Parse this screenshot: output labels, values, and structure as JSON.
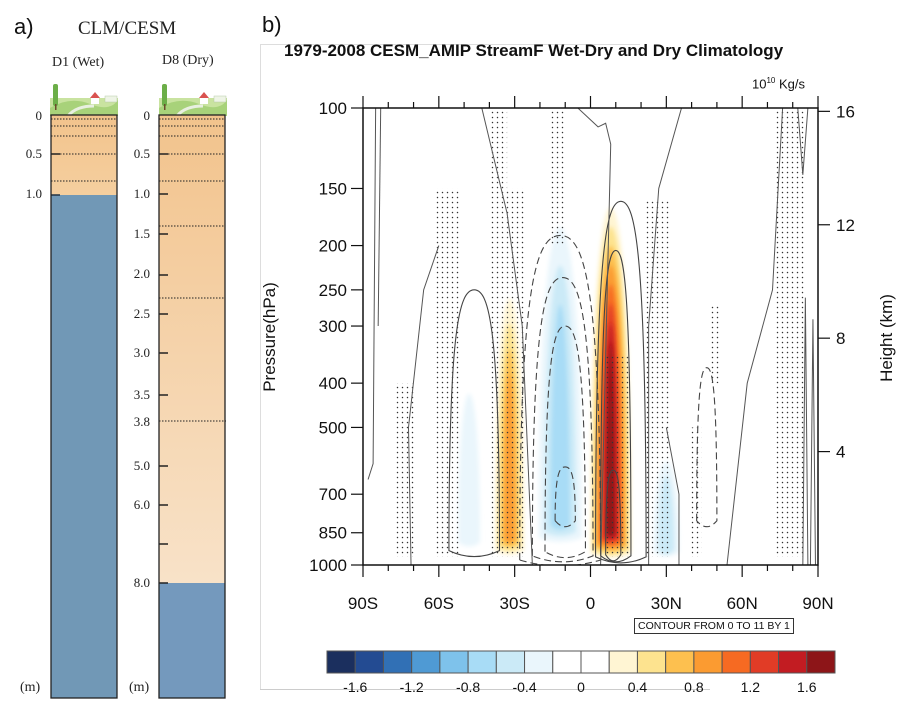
{
  "panel_a": {
    "label": "a)",
    "title": "CLM/CESM",
    "columns": [
      {
        "name": "D1 (Wet)",
        "soil_depth_m": 1.0,
        "total_depth_ticks": [
          "0",
          "0.5",
          "1.0"
        ],
        "unit": "(m)"
      },
      {
        "name": "D8 (Dry)",
        "soil_depth_m": 8.0,
        "total_depth_ticks": [
          "0",
          "0.5",
          "1.0",
          "1.5",
          "2.0",
          "2.5",
          "3.0",
          "3.5",
          "3.8",
          "5.0",
          "6.0",
          "8.0"
        ],
        "unit": "(m)"
      }
    ],
    "colors": {
      "soil": "#f2c792",
      "soil_light": "#f6e0c4",
      "bedrock": "#7198b6"
    }
  },
  "chart_data": {
    "type": "heatmap",
    "panel_label": "b)",
    "title": "1979-2008 CESM_AMIP StreamF Wet-Dry and Dry Climatology",
    "units": "10^10 Kg/s",
    "units_base": "10",
    "units_exp": "10",
    "units_suffix": " Kg/s",
    "ylabel": "Pressure(hPa)",
    "ylabel_right": "Height (km)",
    "xlabel": "",
    "x_ticks": [
      "90S",
      "60S",
      "30S",
      "0",
      "30N",
      "60N",
      "90N"
    ],
    "x_tick_values": [
      -90,
      -60,
      -30,
      0,
      30,
      60,
      90
    ],
    "xlim": [
      -90,
      90
    ],
    "y_ticks": [
      "100",
      "150",
      "200",
      "250",
      "300",
      "400",
      "500",
      "700",
      "850",
      "1000"
    ],
    "y_tick_values": [
      100,
      150,
      200,
      250,
      300,
      400,
      500,
      700,
      850,
      1000
    ],
    "ylim": [
      1000,
      100
    ],
    "y_scale": "log",
    "y_right_ticks": [
      "16",
      "12",
      "8",
      "4"
    ],
    "y_right_tick_values": [
      16,
      12,
      8,
      4
    ],
    "contour_note": "CONTOUR FROM 0 TO 11 BY 1",
    "colorbar": {
      "levels": [
        -1.8,
        -1.6,
        -1.4,
        -1.2,
        -1.0,
        -0.8,
        -0.6,
        -0.4,
        -0.2,
        0,
        0.2,
        0.4,
        0.6,
        0.8,
        1.0,
        1.2,
        1.4,
        1.6,
        1.8
      ],
      "tick_labels": [
        "-1.6",
        "-1.2",
        "-0.8",
        "-0.4",
        "0",
        "0.4",
        "0.8",
        "1.2",
        "1.6"
      ],
      "tick_values": [
        -1.6,
        -1.2,
        -0.8,
        -0.4,
        0,
        0.4,
        0.8,
        1.2,
        1.6
      ],
      "colors": [
        "#1b2f5e",
        "#234b92",
        "#3170b5",
        "#4f9ad4",
        "#7ec2eb",
        "#a8dcf6",
        "#cbeaf7",
        "#eaf6fc",
        "#ffffff",
        "#ffffff",
        "#fff5d3",
        "#fde38f",
        "#fdc04f",
        "#fb9b31",
        "#f66a22",
        "#e13c26",
        "#c21c22",
        "#8d1518"
      ]
    },
    "shaded_features": [
      {
        "name": "sh-subtropic-positive",
        "lat_center": -32,
        "lat_halfwidth": 7,
        "p_top": 230,
        "p_bottom": 950,
        "peak": 0.9
      },
      {
        "name": "southern-negative-cell",
        "lat_center": -12,
        "lat_halfwidth": 11,
        "p_top": 150,
        "p_bottom": 900,
        "peak": -0.8
      },
      {
        "name": "equatorial-positive-cell",
        "lat_center": 8,
        "lat_halfwidth": 9,
        "p_top": 150,
        "p_bottom": 960,
        "peak": 1.8
      },
      {
        "name": "sh-midlat-negative",
        "lat_center": -48,
        "lat_halfwidth": 7,
        "p_top": 350,
        "p_bottom": 920,
        "peak": -0.4
      },
      {
        "name": "nh-negative",
        "lat_center": 30,
        "lat_halfwidth": 7,
        "p_top": 550,
        "p_bottom": 950,
        "peak": -0.6
      }
    ],
    "solid_contours": [
      {
        "lat_center": -46,
        "lat_halfwidth": 10,
        "p_top": 250,
        "p_bottom": 930
      },
      {
        "lat_center": 12,
        "lat_halfwidth": 10,
        "p_top": 160,
        "p_bottom": 960
      },
      {
        "lat_center": 10,
        "lat_halfwidth": 6,
        "p_top": 205,
        "p_bottom": 955
      },
      {
        "lat_center": 9,
        "lat_halfwidth": 3,
        "p_top": 620,
        "p_bottom": 950
      }
    ],
    "dashed_contours": [
      {
        "lat_center": -12,
        "lat_halfwidth": 16,
        "p_top": 190,
        "p_bottom": 975
      },
      {
        "lat_center": -11,
        "lat_halfwidth": 12,
        "p_top": 235,
        "p_bottom": 955
      },
      {
        "lat_center": -10,
        "lat_halfwidth": 8,
        "p_top": 300,
        "p_bottom": 935
      },
      {
        "lat_center": -10,
        "lat_halfwidth": 4,
        "p_top": 610,
        "p_bottom": 800
      },
      {
        "lat_center": 46,
        "lat_halfwidth": 4,
        "p_top": 370,
        "p_bottom": 800
      }
    ],
    "stippled_regions": [
      {
        "lat_min": -77,
        "lat_max": -70,
        "p_top": 400,
        "p_bottom": 960
      },
      {
        "lat_min": -62,
        "lat_max": -52,
        "p_top": 150,
        "p_bottom": 960
      },
      {
        "lat_min": -40,
        "lat_max": -33,
        "p_top": 100,
        "p_bottom": 960
      },
      {
        "lat_min": -33,
        "lat_max": -26,
        "p_top": 150,
        "p_bottom": 960
      },
      {
        "lat_min": -16,
        "lat_max": -10,
        "p_top": 100,
        "p_bottom": 200
      },
      {
        "lat_min": 6,
        "lat_max": 16,
        "p_top": 350,
        "p_bottom": 960
      },
      {
        "lat_min": 21,
        "lat_max": 32,
        "p_top": 160,
        "p_bottom": 960
      },
      {
        "lat_min": 40,
        "lat_max": 44,
        "p_top": 500,
        "p_bottom": 960
      },
      {
        "lat_min": 47,
        "lat_max": 51,
        "p_top": 270,
        "p_bottom": 400
      },
      {
        "lat_min": 73,
        "lat_max": 85,
        "p_top": 100,
        "p_bottom": 960
      }
    ]
  }
}
